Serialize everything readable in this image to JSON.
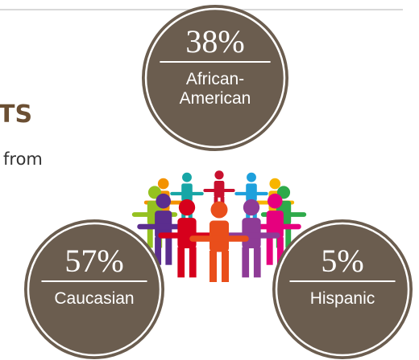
{
  "heading": "TS",
  "body_text": "from",
  "circles": [
    {
      "percent": "38%",
      "label_lines": [
        "African-",
        "American"
      ]
    },
    {
      "percent": "57%",
      "label_lines": [
        "Caucasian"
      ]
    },
    {
      "percent": "5%",
      "label_lines": [
        "Hispanic"
      ]
    }
  ]
}
